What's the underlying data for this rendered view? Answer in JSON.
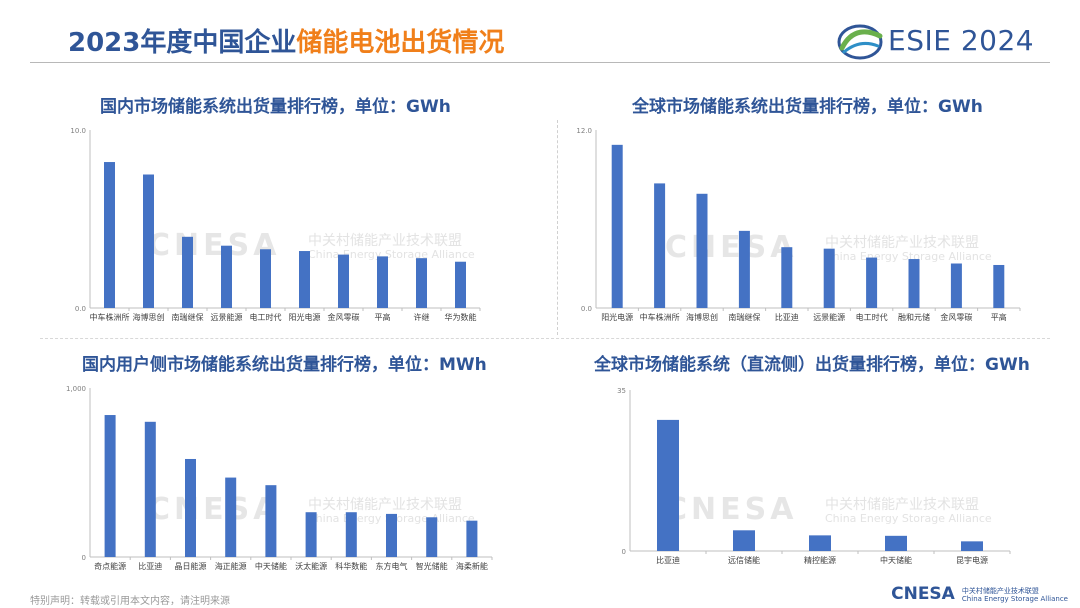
{
  "page": {
    "title_main": "2023年度中国企业",
    "title_highlight": "储能电池出货情况",
    "logo_text": "ESIE 2024",
    "footer_note": "特别声明：转载或引用本文内容，请注明来源",
    "watermark_big": "CNESA",
    "watermark_cn": "中关村储能产业技术联盟",
    "watermark_en": "China Energy Storage Alliance",
    "cnesa_logo": "CNESA",
    "cnesa_logo_cn": "中关村储能产业技术联盟",
    "cnesa_logo_en": "China Energy Storage Alliance"
  },
  "chart_data": [
    {
      "type": "bar",
      "title": "国内市场储能系统出货量排行榜，单位：GWh",
      "categories": [
        "中车株洲所",
        "海博思创",
        "南瑞继保",
        "远景能源",
        "电工时代",
        "阳光电源",
        "金风零碳",
        "平高",
        "许继",
        "华为数能"
      ],
      "values": [
        8.2,
        7.5,
        4.0,
        3.5,
        3.3,
        3.2,
        3.0,
        2.9,
        2.8,
        2.6
      ],
      "ylim": [
        0,
        10
      ],
      "tick_labels": [
        "0.0",
        "10.0"
      ],
      "bar_color": "#4472c4"
    },
    {
      "type": "bar",
      "title": "全球市场储能系统出货量排行榜，单位：GWh",
      "categories": [
        "阳光电源",
        "中车株洲所",
        "海博思创",
        "南瑞继保",
        "比亚迪",
        "远景能源",
        "电工时代",
        "融和元储",
        "金风零碳",
        "平高"
      ],
      "values": [
        11.0,
        8.4,
        7.7,
        5.2,
        4.1,
        4.0,
        3.4,
        3.3,
        3.0,
        2.9
      ],
      "ylim": [
        0,
        12
      ],
      "tick_labels": [
        "0.0",
        "12.0"
      ],
      "bar_color": "#4472c4"
    },
    {
      "type": "bar",
      "title": "国内用户侧市场储能系统出货量排行榜，单位：MWh",
      "categories": [
        "奇点能源",
        "比亚迪",
        "晶日能源",
        "海正能源",
        "中天储能",
        "沃太能源",
        "科华数能",
        "东方电气",
        "智光储能",
        "海柔新能"
      ],
      "values": [
        840,
        800,
        580,
        470,
        425,
        265,
        265,
        255,
        235,
        215
      ],
      "ylim": [
        0,
        1000
      ],
      "tick_labels": [
        "0",
        "1,000"
      ],
      "bar_color": "#4472c4"
    },
    {
      "type": "bar",
      "title": "全球市场储能系统（直流侧）出货量排行榜，单位：GWh",
      "categories": [
        "比亚迪",
        "远信储能",
        "精控能源",
        "中天储能",
        "昆宇电源"
      ],
      "values": [
        28.5,
        4.5,
        3.4,
        3.3,
        2.1
      ],
      "ylim": [
        0,
        35
      ],
      "tick_labels": [
        "0",
        "35"
      ],
      "bar_color": "#4472c4"
    }
  ]
}
